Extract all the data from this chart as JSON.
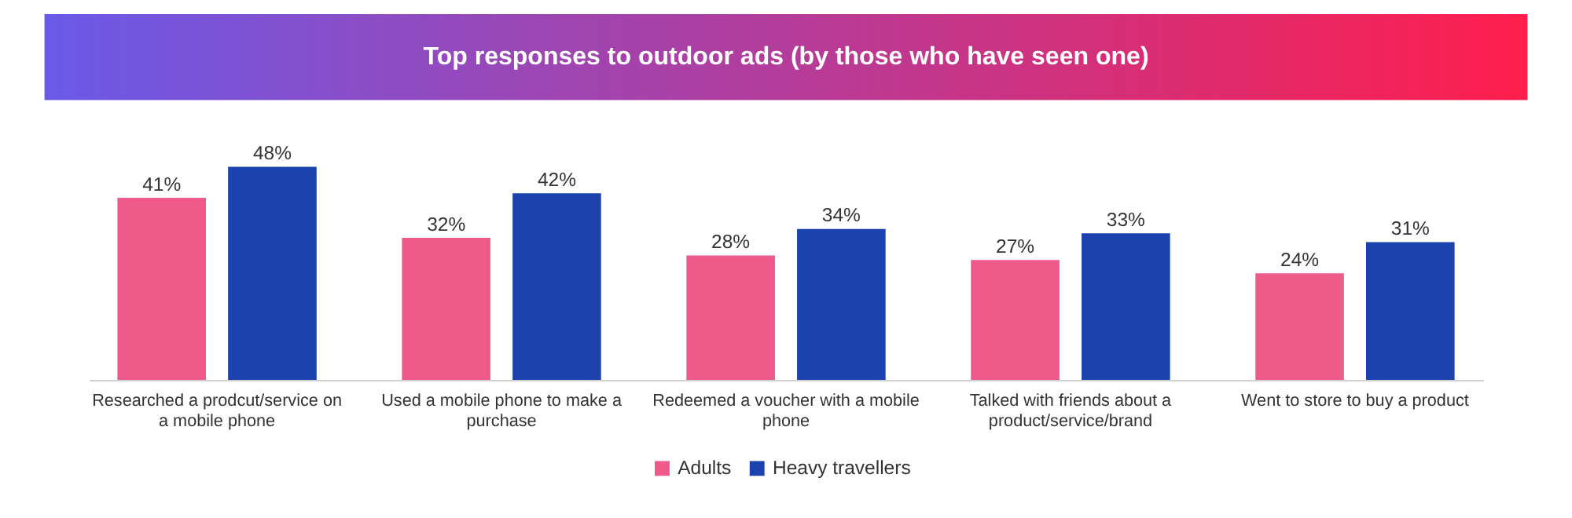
{
  "chart_data": {
    "type": "bar",
    "title": "Top responses to outdoor ads (by those who have seen one)",
    "categories": [
      "Researched a prodcut/service on a mobile phone",
      "Used a mobile phone to make a purchase",
      "Redeemed a voucher with a mobile phone",
      "Talked with friends about a product/service/brand",
      "Went to store to buy a product"
    ],
    "series": [
      {
        "name": "Adults",
        "color": "#ee5a8a",
        "values": [
          41,
          32,
          28,
          27,
          24
        ],
        "value_labels": [
          "41%",
          "32%",
          "28%",
          "27%",
          "24%"
        ]
      },
      {
        "name": "Heavy travellers",
        "color": "#1c43ad",
        "values": [
          48,
          42,
          34,
          33,
          31
        ],
        "value_labels": [
          "48%",
          "42%",
          "34%",
          "33%",
          "31%"
        ]
      }
    ],
    "legend": "bottom"
  }
}
